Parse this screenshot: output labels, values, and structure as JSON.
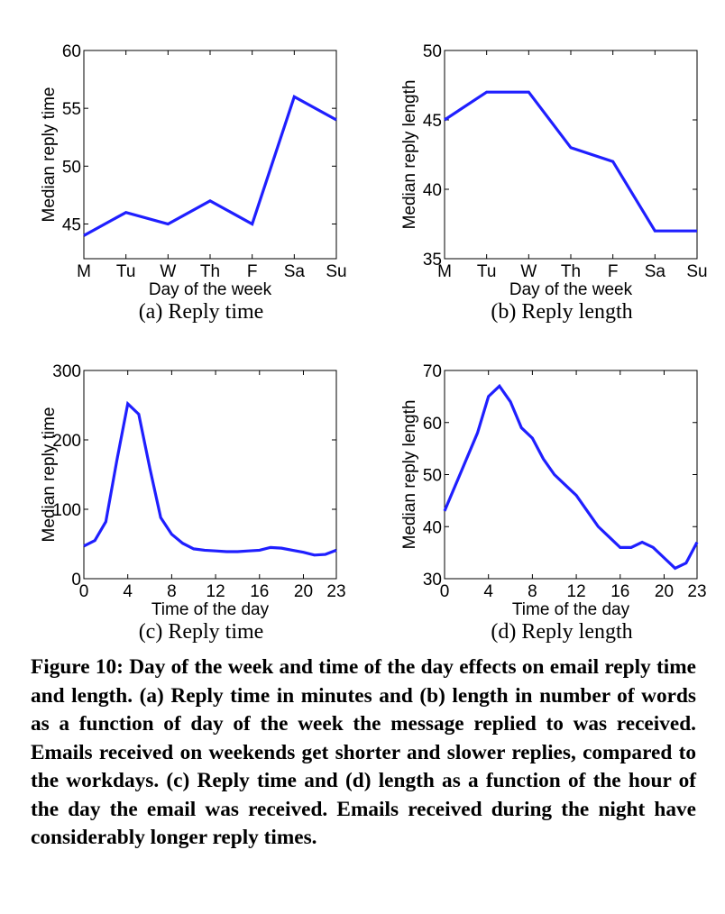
{
  "chart_data": [
    {
      "id": "a",
      "type": "line",
      "categories": [
        "M",
        "Tu",
        "W",
        "Th",
        "F",
        "Sa",
        "Su"
      ],
      "series": [
        {
          "values": [
            44,
            46,
            45,
            47,
            45,
            56,
            54
          ]
        }
      ],
      "ylabel": "Median reply time",
      "xlabel": "Day of the week",
      "ylim": [
        42,
        60
      ],
      "yticks": [
        45,
        50,
        55,
        60
      ],
      "subcaption": "(a) Reply time",
      "color": "#1f1fff"
    },
    {
      "id": "b",
      "type": "line",
      "categories": [
        "M",
        "Tu",
        "W",
        "Th",
        "F",
        "Sa",
        "Su"
      ],
      "series": [
        {
          "values": [
            45,
            47,
            47,
            43,
            42,
            37,
            37
          ]
        }
      ],
      "ylabel": "Median reply length",
      "xlabel": "Day of the week",
      "ylim": [
        35,
        50
      ],
      "yticks": [
        35,
        40,
        45,
        50
      ],
      "subcaption": "(b) Reply length",
      "color": "#1f1fff"
    },
    {
      "id": "c",
      "type": "line",
      "x": [
        0,
        1,
        2,
        3,
        4,
        5,
        6,
        7,
        8,
        9,
        10,
        11,
        12,
        13,
        14,
        15,
        16,
        17,
        18,
        19,
        20,
        21,
        22,
        23
      ],
      "series": [
        {
          "values": [
            47,
            55,
            82,
            170,
            252,
            237,
            160,
            88,
            64,
            51,
            43,
            41,
            40,
            39,
            39,
            40,
            41,
            45,
            44,
            41,
            38,
            34,
            35,
            41
          ]
        }
      ],
      "ylabel": "Median reply time",
      "xlabel": "Time of the day",
      "xlim": [
        0,
        23
      ],
      "ylim": [
        0,
        300
      ],
      "xticks": [
        0,
        4,
        8,
        12,
        16,
        20,
        23
      ],
      "yticks": [
        0,
        100,
        200,
        300
      ],
      "subcaption": "(c) Reply time",
      "color": "#1f1fff"
    },
    {
      "id": "d",
      "type": "line",
      "x": [
        0,
        1,
        2,
        3,
        4,
        5,
        6,
        7,
        8,
        9,
        10,
        11,
        12,
        13,
        14,
        15,
        16,
        17,
        18,
        19,
        20,
        21,
        22,
        23
      ],
      "series": [
        {
          "values": [
            43,
            48,
            53,
            58,
            65,
            67,
            64,
            59,
            57,
            53,
            50,
            48,
            46,
            43,
            40,
            38,
            36,
            36,
            37,
            36,
            34,
            32,
            33,
            37
          ]
        }
      ],
      "ylabel": "Median reply length",
      "xlabel": "Time of the day",
      "xlim": [
        0,
        23
      ],
      "ylim": [
        30,
        70
      ],
      "xticks": [
        0,
        4,
        8,
        12,
        16,
        20,
        23
      ],
      "yticks": [
        30,
        40,
        50,
        60,
        70
      ],
      "subcaption": "(d) Reply length",
      "color": "#1f1fff"
    }
  ],
  "caption": "Figure 10: Day of the week and time of the day effects on email reply time and length. (a) Reply time in minutes and (b) length in number of words as a function of day of the week the message replied to was received. Emails received on weekends get shorter and slower replies, compared to the workdays. (c) Reply time and (d) length as a function of the hour of the day the email was received. Emails received during the night have considerably longer reply times."
}
